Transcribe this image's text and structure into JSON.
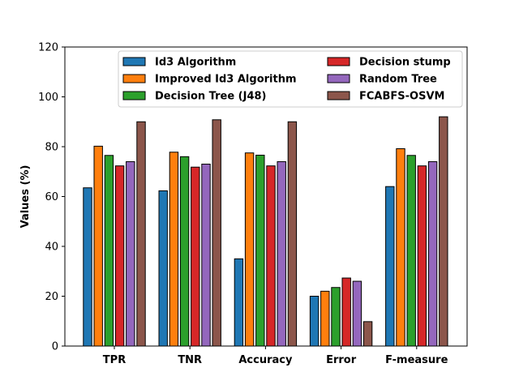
{
  "chart_data": {
    "type": "bar",
    "categories": [
      "TPR",
      "TNR",
      "Accuracy",
      "Error",
      "F-measure"
    ],
    "series": [
      {
        "name": "Id3 Algorithm",
        "color": "#1f77b4",
        "values": [
          63.5,
          62.3,
          35,
          20,
          64
        ]
      },
      {
        "name": "Improved Id3 Algorithm",
        "color": "#ff7f0e",
        "values": [
          80.2,
          77.8,
          77.5,
          22,
          79.2
        ]
      },
      {
        "name": "Decision Tree (J48)",
        "color": "#2ca02c",
        "values": [
          76.5,
          76,
          76.6,
          23.5,
          76.5
        ]
      },
      {
        "name": "Decision stump",
        "color": "#d62728",
        "values": [
          72.3,
          71.8,
          72.3,
          27.3,
          72.3
        ]
      },
      {
        "name": "Random Tree",
        "color": "#9467bd",
        "values": [
          74,
          73,
          74,
          26,
          74
        ]
      },
      {
        "name": "FCABFS-OSVM",
        "color": "#8c564b",
        "values": [
          90,
          90.8,
          90,
          9.8,
          92
        ]
      }
    ],
    "ylabel": "Values (%)",
    "ylim": [
      0,
      120
    ],
    "yticks": [
      "0",
      "20",
      "40",
      "60",
      "80",
      "100",
      "120"
    ],
    "ytick_values": [
      0,
      20,
      40,
      60,
      80,
      100,
      120
    ],
    "grid": false,
    "legend_position": "top-center"
  }
}
